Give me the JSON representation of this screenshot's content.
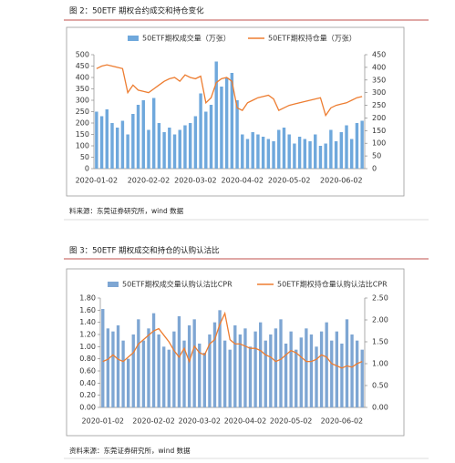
{
  "chart_data": [
    {
      "type": "combo",
      "title": "图 2：50ETF 期权合约成交和持仓变化",
      "source": "料来源：东莞证券研究所，wind 数据",
      "categories": [
        "2020-01-02",
        null,
        null,
        null,
        null,
        null,
        null,
        null,
        null,
        null,
        "2020-02-02",
        null,
        null,
        null,
        null,
        null,
        null,
        null,
        null,
        "2020-03-02",
        null,
        null,
        null,
        null,
        null,
        null,
        null,
        null,
        "2020-04-02",
        null,
        null,
        null,
        null,
        null,
        null,
        null,
        null,
        "2020-05-02",
        null,
        null,
        null,
        null,
        null,
        null,
        null,
        null,
        null,
        "2020-06-02",
        null,
        null,
        null,
        null
      ],
      "series": [
        {
          "name": "50ETF期权成交量（万张）",
          "mark": "bar",
          "color": "#6fa8dc",
          "values": [
            250,
            230,
            260,
            200,
            180,
            210,
            150,
            240,
            280,
            300,
            170,
            310,
            200,
            160,
            180,
            150,
            170,
            190,
            200,
            230,
            330,
            250,
            280,
            470,
            360,
            400,
            420,
            300,
            150,
            130,
            160,
            150,
            140,
            130,
            120,
            170,
            180,
            150,
            110,
            140,
            130,
            120,
            150,
            100,
            110,
            170,
            120,
            160,
            190,
            130,
            200,
            210
          ]
        },
        {
          "name": "50ETF期权持仓量（万张）",
          "mark": "line",
          "axis": "y2",
          "color": "#ed7d31",
          "values": [
            395,
            405,
            410,
            405,
            400,
            395,
            300,
            330,
            310,
            305,
            300,
            315,
            330,
            345,
            355,
            360,
            345,
            370,
            360,
            355,
            365,
            260,
            280,
            340,
            355,
            360,
            345,
            240,
            230,
            260,
            270,
            280,
            285,
            290,
            275,
            230,
            240,
            250,
            255,
            260,
            265,
            270,
            275,
            280,
            210,
            240,
            250,
            255,
            260,
            270,
            280,
            285
          ]
        }
      ],
      "ylim": [
        0,
        500
      ],
      "yticks": [
        0,
        50,
        100,
        150,
        200,
        250,
        300,
        350,
        400,
        450,
        500
      ],
      "y2lim": [
        0,
        450
      ],
      "y2ticks": [
        0,
        50,
        100,
        150,
        200,
        250,
        300,
        350,
        400,
        450
      ]
    },
    {
      "type": "combo",
      "title": "图 3：50ETF 期权成交和持仓的认购认沽比",
      "source": "资料来源：东莞证券研究所，wind 数据",
      "categories": [
        "2020-01-02",
        null,
        null,
        null,
        null,
        null,
        null,
        null,
        null,
        null,
        "2020-02-02",
        null,
        null,
        null,
        null,
        null,
        null,
        null,
        null,
        "2020-03-02",
        null,
        null,
        null,
        null,
        null,
        null,
        null,
        null,
        "2020-04-02",
        null,
        null,
        null,
        null,
        null,
        null,
        null,
        null,
        "2020-05-02",
        null,
        null,
        null,
        null,
        null,
        null,
        null,
        null,
        null,
        "2020-06-02",
        null,
        null,
        null,
        null
      ],
      "series": [
        {
          "name": "50ETF期权成交量认购认沽比CPR",
          "mark": "bar",
          "color": "#7ea6d3",
          "values": [
            1.62,
            1.3,
            1.25,
            1.35,
            1.1,
            0.8,
            1.2,
            1.45,
            1.1,
            1.3,
            1.55,
            1.2,
            1.0,
            0.95,
            1.25,
            1.5,
            1.1,
            1.35,
            1.45,
            1.05,
            0.9,
            1.2,
            1.4,
            1.6,
            1.1,
            0.95,
            1.35,
            1.2,
            1.3,
            1.0,
            1.25,
            1.4,
            1.1,
            1.2,
            1.3,
            1.45,
            1.05,
            1.25,
            0.95,
            1.15,
            1.3,
            1.2,
            1.0,
            1.25,
            1.4,
            1.1,
            1.25,
            1.05,
            1.45,
            1.2,
            1.1,
            0.95
          ]
        },
        {
          "name": "50ETF期权持仓量认购认沽比CPR",
          "mark": "line",
          "axis": "y2",
          "color": "#ed7d31",
          "values": [
            1.05,
            1.1,
            1.2,
            1.1,
            1.05,
            1.15,
            1.25,
            1.45,
            1.55,
            1.65,
            1.75,
            1.8,
            1.65,
            1.5,
            1.3,
            1.15,
            1.35,
            1.05,
            1.4,
            1.25,
            1.2,
            1.45,
            1.55,
            1.9,
            2.15,
            1.55,
            1.45,
            1.45,
            1.4,
            1.35,
            1.35,
            1.3,
            1.2,
            1.15,
            1.05,
            1.1,
            1.2,
            1.3,
            1.25,
            1.15,
            1.05,
            1.05,
            1.1,
            1.2,
            1.15,
            1.0,
            0.95,
            0.9,
            0.95,
            0.92,
            1.0,
            1.05
          ]
        }
      ],
      "ylim": [
        0,
        1.8
      ],
      "yticks": [
        {
          "value": 0,
          "label": "0.00"
        },
        {
          "value": 0.2,
          "label": "0.20"
        },
        {
          "value": 0.4,
          "label": "0.40"
        },
        {
          "value": 0.6,
          "label": "0.60"
        },
        {
          "value": 0.8,
          "label": "0.80"
        },
        {
          "value": 1.0,
          "label": "1.00"
        },
        {
          "value": 1.2,
          "label": "1.20"
        },
        {
          "value": 1.4,
          "label": "1.40"
        },
        {
          "value": 1.6,
          "label": "1.60"
        },
        {
          "value": 1.8,
          "label": "1.80"
        }
      ],
      "y2lim": [
        0,
        2.5
      ],
      "y2ticks": [
        {
          "value": 0,
          "label": "0.00"
        },
        {
          "value": 0.5,
          "label": "0.50"
        },
        {
          "value": 1.0,
          "label": "1.00"
        },
        {
          "value": 1.5,
          "label": "1.50"
        },
        {
          "value": 2.0,
          "label": "2.00"
        },
        {
          "value": 2.5,
          "label": "2.50"
        }
      ]
    }
  ]
}
